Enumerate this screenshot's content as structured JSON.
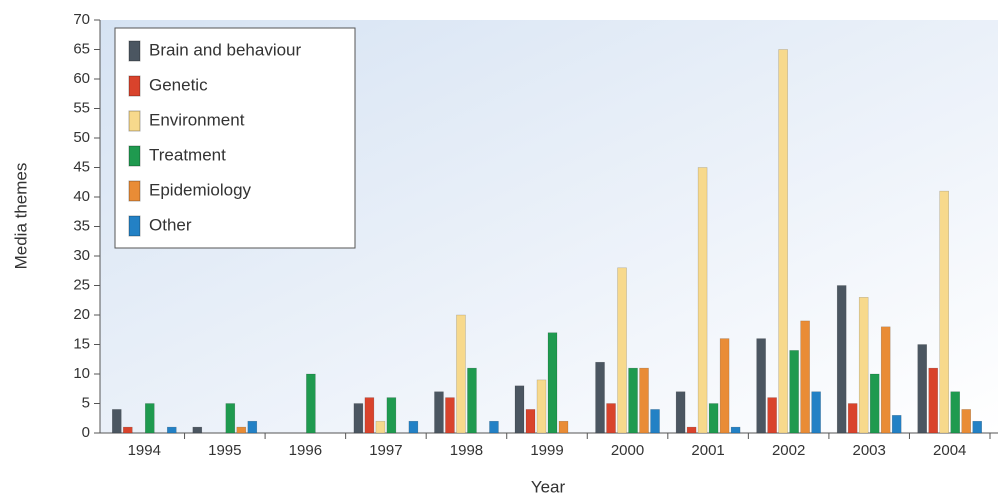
{
  "chart_data": {
    "type": "bar",
    "x_label": "Year",
    "y_label": "Media themes",
    "categories": [
      "1994",
      "1995",
      "1996",
      "1997",
      "1998",
      "1999",
      "2000",
      "2001",
      "2002",
      "2003",
      "2004"
    ],
    "series": [
      {
        "name": "Brain and behaviour",
        "color": "#4b5661",
        "values": [
          4,
          1,
          0,
          5,
          7,
          8,
          12,
          7,
          16,
          25,
          15
        ]
      },
      {
        "name": "Genetic",
        "color": "#d9432c",
        "values": [
          1,
          0,
          0,
          6,
          6,
          4,
          5,
          1,
          6,
          5,
          11
        ]
      },
      {
        "name": "Environment",
        "color": "#f7d98c",
        "values": [
          0,
          0,
          0,
          2,
          20,
          9,
          28,
          45,
          65,
          23,
          41
        ]
      },
      {
        "name": "Treatment",
        "color": "#1f9a4f",
        "values": [
          5,
          5,
          10,
          6,
          11,
          17,
          11,
          5,
          14,
          10,
          7
        ]
      },
      {
        "name": "Epidemiology",
        "color": "#e98c36",
        "values": [
          0,
          1,
          0,
          0,
          0,
          2,
          11,
          16,
          19,
          18,
          4
        ]
      },
      {
        "name": "Other",
        "color": "#2381c5",
        "values": [
          1,
          2,
          0,
          2,
          2,
          0,
          4,
          1,
          7,
          3,
          2
        ]
      }
    ],
    "ylim": [
      0,
      70
    ],
    "yticks": [
      0,
      5,
      10,
      15,
      20,
      25,
      30,
      35,
      40,
      45,
      50,
      55,
      60,
      65,
      70
    ],
    "legend": "top-left"
  }
}
